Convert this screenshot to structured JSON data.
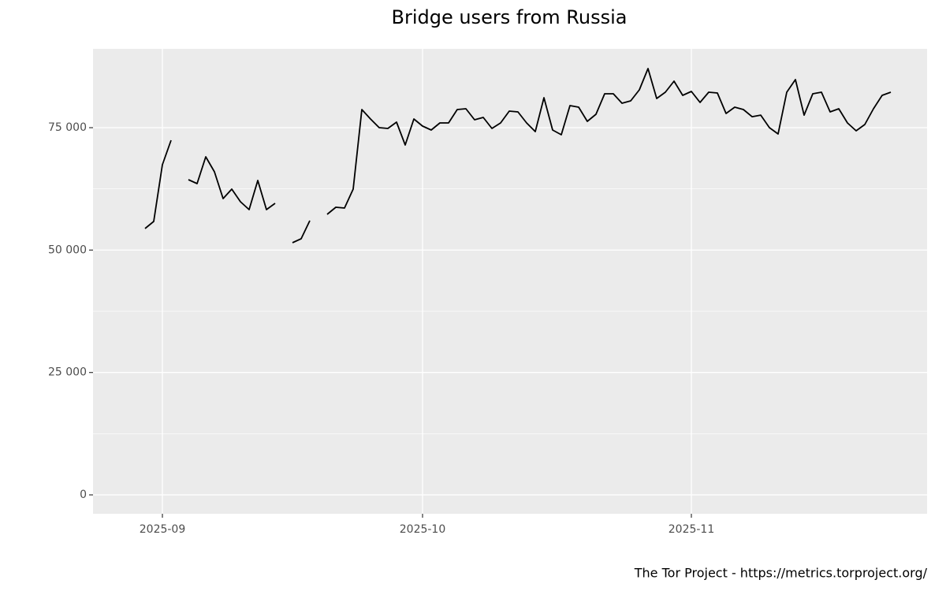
{
  "chart_data": {
    "type": "line",
    "title": "Bridge users from Russia",
    "caption": "The Tor Project - https://metrics.torproject.org/",
    "categories": [
      null,
      null,
      "2025-09",
      null,
      null,
      null,
      null,
      null,
      null,
      null,
      null,
      null,
      null,
      null,
      null,
      null,
      null,
      null,
      null,
      null,
      null,
      null,
      null,
      null,
      null,
      null,
      null,
      null,
      null,
      null,
      null,
      null,
      "2025-10",
      null,
      null,
      null,
      null,
      null,
      null,
      null,
      null,
      null,
      null,
      null,
      null,
      null,
      null,
      null,
      null,
      null,
      null,
      null,
      null,
      null,
      null,
      null,
      null,
      null,
      null,
      null,
      null,
      null,
      null,
      "2025-11",
      null,
      null,
      null,
      null,
      null,
      null,
      null,
      null,
      null,
      null,
      null,
      null,
      null,
      null,
      null,
      null,
      null,
      null,
      null,
      null,
      null,
      null,
      null
    ],
    "values": [
      54400,
      55850,
      67440,
      72430,
      null,
      64380,
      63570,
      69050,
      65990,
      60520,
      62450,
      59870,
      58260,
      64220,
      58260,
      59550,
      null,
      51500,
      52310,
      56010,
      null,
      57300,
      58750,
      58590,
      62450,
      78700,
      76770,
      75000,
      74840,
      76130,
      71460,
      76770,
      75320,
      74520,
      75970,
      75970,
      78700,
      78860,
      76610,
      77090,
      74840,
      75970,
      78380,
      78220,
      75970,
      74200,
      81120,
      74520,
      73550,
      79510,
      79190,
      76290,
      77740,
      81920,
      81920,
      79990,
      80470,
      82730,
      87070,
      80960,
      82240,
      84500,
      81600,
      82410,
      80150,
      82240,
      82080,
      77900,
      79190,
      78700,
      77250,
      77570,
      75000,
      73710,
      82240,
      84820,
      77570,
      81920,
      82240,
      78220,
      78860,
      75970,
      74360,
      75650,
      78860,
      81600,
      82240
    ],
    "color": "#000000",
    "ylim": [
      -3860,
      91100
    ],
    "yticks": [
      {
        "value": 0,
        "label": "0"
      },
      {
        "value": 25000,
        "label": "25 000"
      },
      {
        "value": 50000,
        "label": "50 000"
      },
      {
        "value": 75000,
        "label": "75 000"
      }
    ],
    "grid": true
  }
}
